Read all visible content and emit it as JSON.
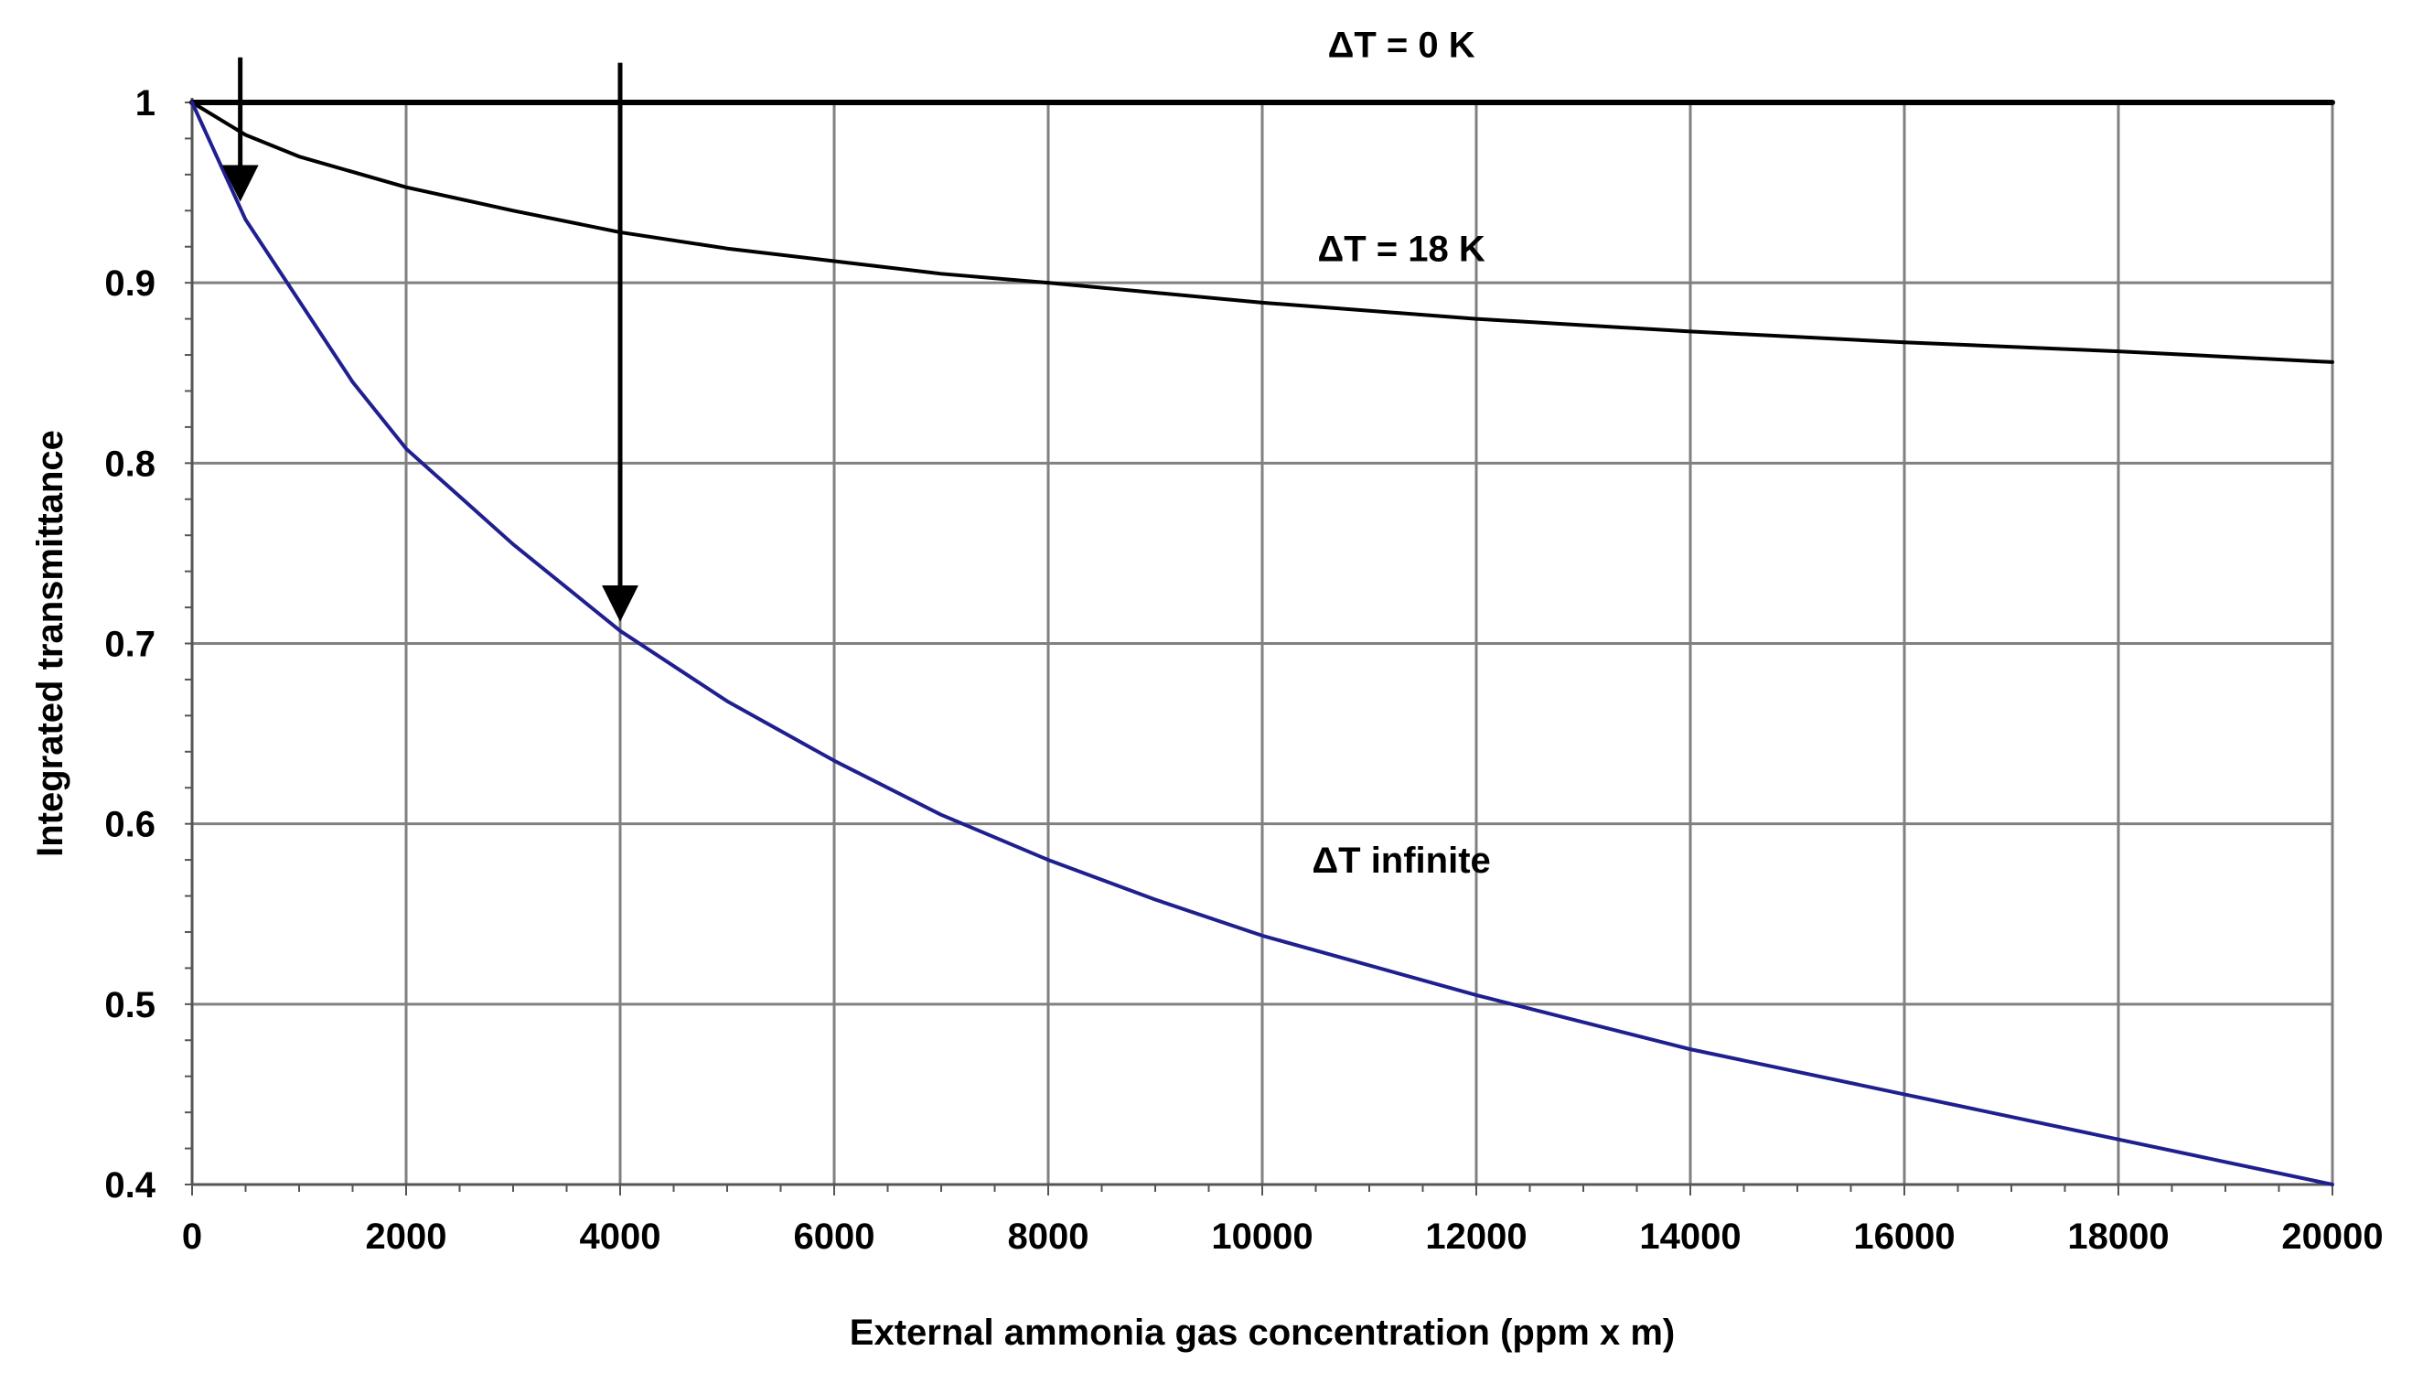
{
  "chart_data": {
    "type": "line",
    "title": "",
    "xlabel": "External ammonia gas concentration (ppm x m)",
    "ylabel": "Integrated transmittance",
    "xlim": [
      0,
      20000
    ],
    "ylim": [
      0.4,
      1.0
    ],
    "x_ticks": [
      0,
      2000,
      4000,
      6000,
      8000,
      10000,
      12000,
      14000,
      16000,
      18000,
      20000
    ],
    "y_ticks": [
      0.4,
      0.5,
      0.6,
      0.7,
      0.8,
      0.9,
      1.0
    ],
    "x_tick_labels": [
      "0",
      "2000",
      "4000",
      "6000",
      "8000",
      "10000",
      "12000",
      "14000",
      "16000",
      "18000",
      "20000"
    ],
    "y_tick_labels": [
      "0.4",
      "0.5",
      "0.6",
      "0.7",
      "0.8",
      "0.9",
      "1"
    ],
    "grid": true,
    "series": [
      {
        "name": "ΔT = 0 K",
        "color": "#000000",
        "x": [
          0,
          20000
        ],
        "y": [
          1.0,
          1.0
        ]
      },
      {
        "name": "ΔT = 18 K",
        "color": "#000000",
        "x": [
          0,
          500,
          1000,
          2000,
          3000,
          4000,
          5000,
          6000,
          7000,
          8000,
          10000,
          12000,
          14000,
          16000,
          18000,
          20000
        ],
        "y": [
          1.0,
          0.982,
          0.97,
          0.953,
          0.94,
          0.928,
          0.919,
          0.912,
          0.905,
          0.9,
          0.889,
          0.88,
          0.873,
          0.867,
          0.862,
          0.856
        ]
      },
      {
        "name": "ΔT infinite",
        "color": "#1f1f8f",
        "x": [
          0,
          500,
          1000,
          1500,
          2000,
          3000,
          4000,
          5000,
          6000,
          7000,
          8000,
          9000,
          10000,
          12000,
          14000,
          16000,
          18000,
          20000
        ],
        "y": [
          1.0,
          0.935,
          0.89,
          0.845,
          0.808,
          0.755,
          0.707,
          0.668,
          0.635,
          0.605,
          0.58,
          0.558,
          0.538,
          0.505,
          0.475,
          0.45,
          0.425,
          0.4
        ]
      }
    ],
    "annotations": [
      {
        "text": "ΔT = 0 K",
        "x": 11300,
        "y": 1.025
      },
      {
        "text": "ΔT = 18 K",
        "x": 11300,
        "y": 0.912
      },
      {
        "text": "ΔT infinite",
        "x": 11300,
        "y": 0.573
      }
    ],
    "arrows": [
      {
        "x": 450,
        "y_from": 1.025,
        "y_to": 0.945
      },
      {
        "x": 4000,
        "y_from": 1.022,
        "y_to": 0.712
      }
    ]
  }
}
